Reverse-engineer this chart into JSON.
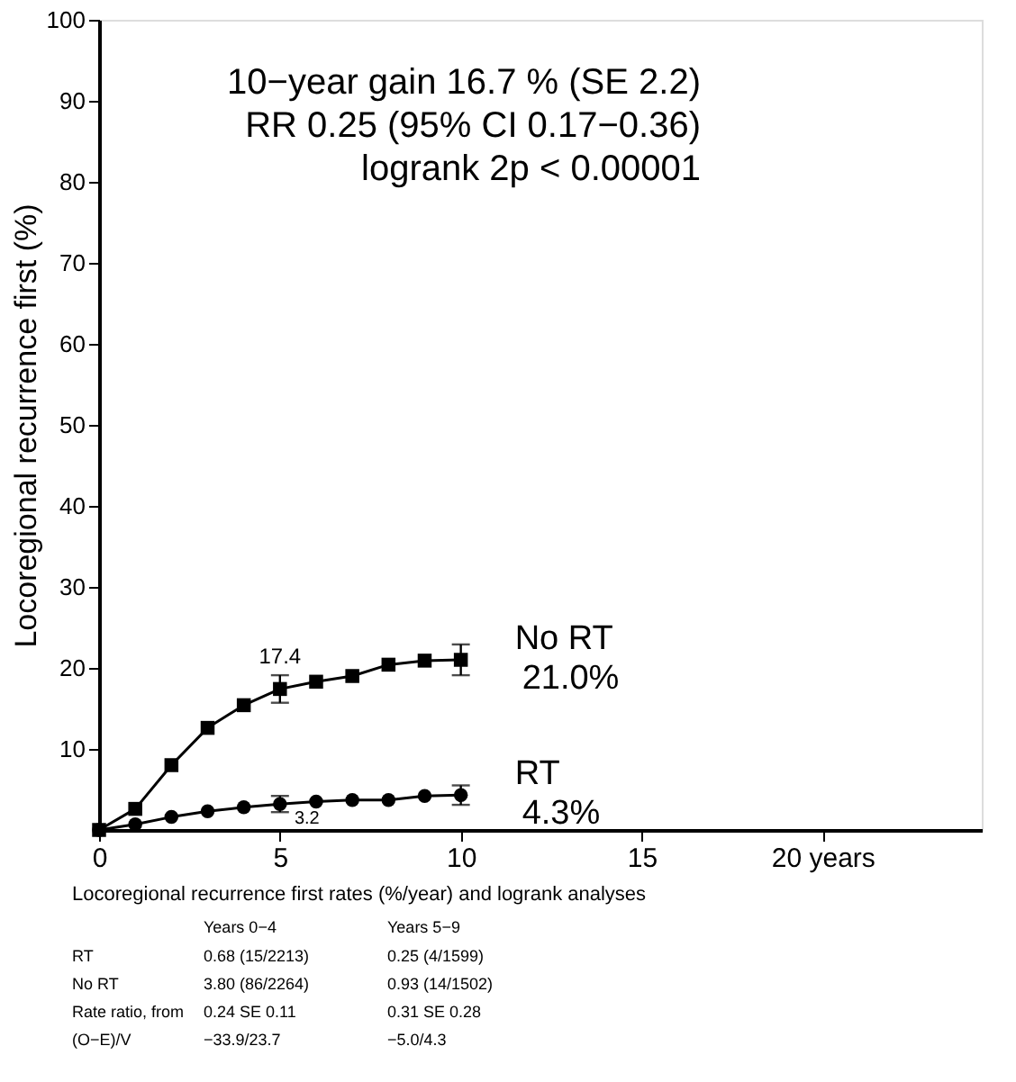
{
  "chart_data": {
    "type": "line",
    "ylabel": "Locoregional recurrence first (%)",
    "x": [
      0,
      1,
      2,
      3,
      4,
      5,
      6,
      7,
      8,
      9,
      10
    ],
    "series": [
      {
        "name": "No RT",
        "color": "#000000",
        "marker": "square",
        "values": [
          0,
          2.6,
          8.0,
          12.6,
          15.4,
          17.4,
          18.3,
          19.0,
          20.4,
          20.9,
          21.0
        ],
        "errors": [
          null,
          null,
          null,
          null,
          null,
          1.7,
          null,
          null,
          null,
          null,
          1.9
        ],
        "value_labels": [
          null,
          null,
          null,
          null,
          null,
          "17.4",
          null,
          null,
          null,
          null,
          null
        ]
      },
      {
        "name": "RT",
        "color": "#000000",
        "marker": "circle",
        "values": [
          0,
          0.7,
          1.6,
          2.3,
          2.8,
          3.2,
          3.5,
          3.7,
          3.7,
          4.2,
          4.3
        ],
        "errors": [
          null,
          null,
          null,
          null,
          null,
          1.0,
          null,
          null,
          null,
          null,
          1.2
        ],
        "value_labels": [
          null,
          null,
          null,
          null,
          null,
          "3.2",
          null,
          null,
          null,
          null,
          null
        ]
      }
    ],
    "xlim": [
      0,
      24.4
    ],
    "xticks": [
      0,
      5,
      10,
      15,
      {
        "value": 20,
        "label": "20 years"
      }
    ],
    "ylim": [
      0,
      100
    ],
    "yticks": [
      10,
      20,
      30,
      40,
      50,
      60,
      70,
      80,
      90,
      100
    ],
    "grid": false,
    "legend": false,
    "line_style": "solid",
    "annotations": [
      "10−year gain 16.7 % (SE 2.2)",
      "RR 0.25 (95% CI 0.17−0.36)",
      "logrank 2p < 0.00001",
      {
        "text": "21.0%",
        "x": 10,
        "y": 21.0
      },
      {
        "text": "4.3%",
        "x": 10,
        "y": 4.3
      },
      "Locoregional recurrence first rates (%/year) and logrank analyses",
      "Years 0−4",
      "Years 5−9",
      "RT",
      "0.68 (15/2213)",
      "0.25 (4/1599)",
      "No RT",
      "3.80 (86/2264)",
      "0.93 (14/1502)",
      "Rate ratio, from",
      "0.24 SE 0.11",
      "0.31 SE 0.28",
      "(O−E)/V",
      "−33.9/23.7",
      "−5.0/4.3"
    ]
  }
}
